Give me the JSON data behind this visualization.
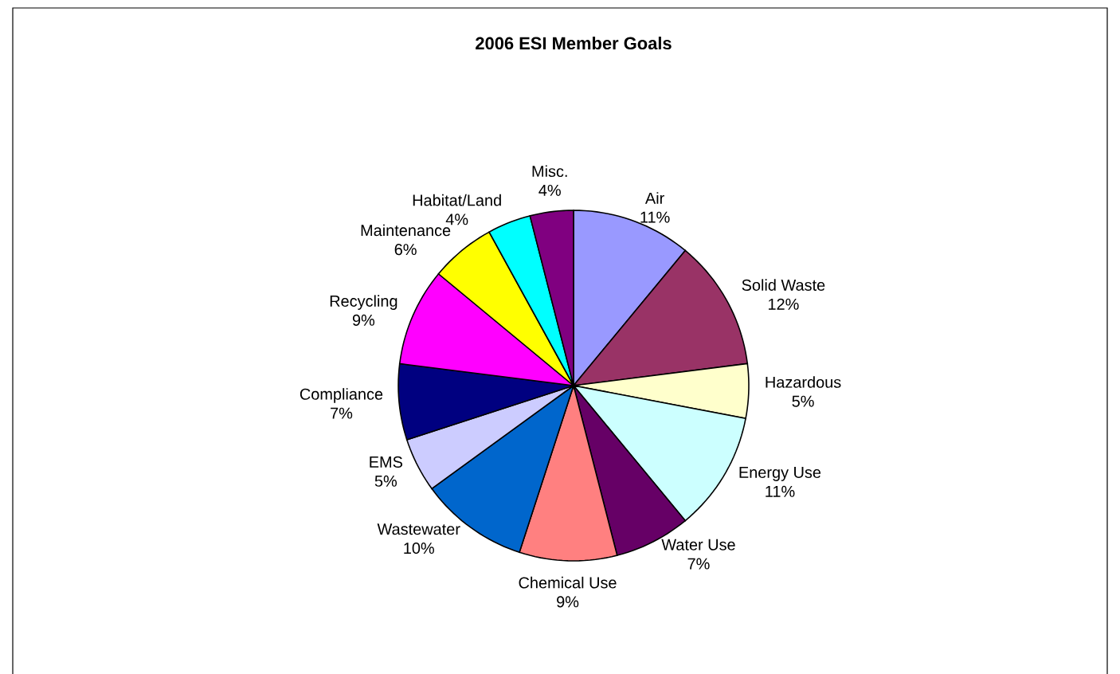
{
  "chart_data": {
    "type": "pie",
    "title": "2006 ESI Member Goals",
    "categories": [
      "Air",
      "Solid Waste",
      "Hazardous",
      "Energy Use",
      "Water Use",
      "Chemical Use",
      "Wastewater",
      "EMS",
      "Compliance",
      "Recycling",
      "Maintenance",
      "Habitat/Land",
      "Misc."
    ],
    "values": [
      11,
      12,
      5,
      11,
      7,
      9,
      10,
      5,
      7,
      9,
      6,
      4,
      4
    ],
    "value_labels": [
      "11%",
      "12%",
      "5%",
      "11%",
      "7%",
      "9%",
      "10%",
      "5%",
      "7%",
      "9%",
      "6%",
      "4%",
      "4%"
    ],
    "colors": [
      "#9999ff",
      "#993366",
      "#ffffcc",
      "#ccffff",
      "#660066",
      "#ff8080",
      "#0066cc",
      "#ccccff",
      "#000080",
      "#ff00ff",
      "#ffff00",
      "#00ffff",
      "#800080"
    ]
  }
}
